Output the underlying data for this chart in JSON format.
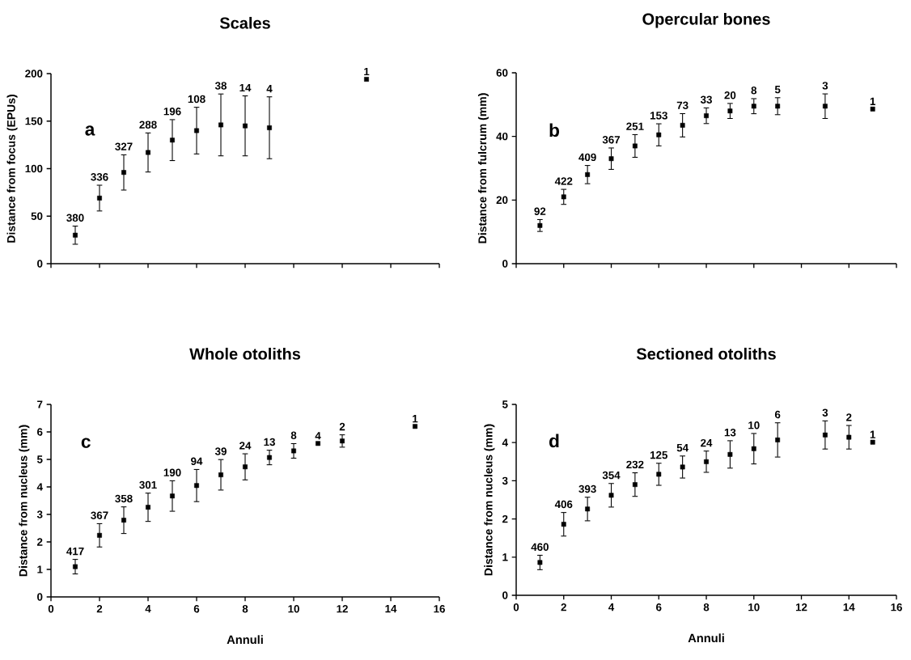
{
  "chart_data": [
    {
      "type": "scatter",
      "title": "Scales",
      "ylabel": "Distance from focus  (EPUs)",
      "x": [
        1,
        2,
        3,
        4,
        5,
        6,
        7,
        8,
        9,
        13
      ],
      "xlim": [
        0,
        16
      ],
      "xticks": [
        0,
        2,
        4,
        6,
        8,
        10,
        12,
        14,
        16
      ],
      "ylim": [
        0,
        200
      ],
      "yticks": [
        0,
        50,
        100,
        150,
        200
      ],
      "tick_labels": "y",
      "marker": "square",
      "series": [
        {
          "color": "#000000",
          "values": [
            30,
            69,
            96,
            117,
            130,
            140,
            146,
            145,
            143,
            194
          ],
          "errors": [
            10,
            14,
            19,
            21,
            22,
            25,
            33,
            32,
            33,
            null
          ]
        }
      ],
      "annotations": [
        "a",
        {
          "text": "380",
          "x": 1,
          "y": 30
        },
        {
          "text": "336",
          "x": 2,
          "y": 69
        },
        {
          "text": "327",
          "x": 3,
          "y": 96
        },
        {
          "text": "288",
          "x": 4,
          "y": 117
        },
        {
          "text": "196",
          "x": 5,
          "y": 130
        },
        {
          "text": "108",
          "x": 6,
          "y": 140
        },
        {
          "text": "38",
          "x": 7,
          "y": 179
        },
        {
          "text": "14",
          "x": 8,
          "y": 177
        },
        {
          "text": "4",
          "x": 9,
          "y": 176
        },
        {
          "text": "1",
          "x": 13,
          "y": 194
        }
      ]
    },
    {
      "type": "scatter",
      "title": "Opercular bones",
      "ylabel": "Distance from fulcrum  (mm)",
      "x": [
        1,
        2,
        3,
        4,
        5,
        6,
        7,
        8,
        9,
        10,
        11,
        13,
        15
      ],
      "xlim": [
        0,
        16
      ],
      "xticks": [
        0,
        2,
        4,
        6,
        8,
        10,
        12,
        14,
        16
      ],
      "ylim": [
        0,
        60
      ],
      "yticks": [
        0,
        20,
        40,
        60
      ],
      "tick_labels": "y",
      "marker": "square",
      "series": [
        {
          "color": "#000000",
          "values": [
            12,
            21,
            28,
            33,
            37,
            40.5,
            43.5,
            46.5,
            48,
            49.5,
            49.5,
            49.5,
            48.6
          ],
          "errors": [
            2,
            2.5,
            3,
            3.5,
            3.7,
            3.6,
            3.8,
            2.6,
            2.5,
            2.5,
            2.8,
            4,
            null
          ]
        }
      ],
      "annotations": [
        "b",
        {
          "text": "92",
          "x": 1,
          "y": 12
        },
        {
          "text": "422",
          "x": 2,
          "y": 21
        },
        {
          "text": "409",
          "x": 3,
          "y": 28
        },
        {
          "text": "367",
          "x": 4,
          "y": 33
        },
        {
          "text": "251",
          "x": 5,
          "y": 37
        },
        {
          "text": "153",
          "x": 6,
          "y": 40.5
        },
        {
          "text": "73",
          "x": 7,
          "y": 43.5
        },
        {
          "text": "33",
          "x": 8,
          "y": 46.5
        },
        {
          "text": "20",
          "x": 9,
          "y": 48
        },
        {
          "text": "8",
          "x": 10,
          "y": 49.5
        },
        {
          "text": "5",
          "x": 11,
          "y": 49.5
        },
        {
          "text": "3",
          "x": 13,
          "y": 49.5
        },
        {
          "text": "1",
          "x": 15,
          "y": 48.6
        }
      ]
    },
    {
      "type": "scatter",
      "title": "Whole otoliths",
      "xlabel": "Annuli",
      "ylabel": "Distance from nucleus  (mm)",
      "x": [
        1,
        2,
        3,
        4,
        5,
        6,
        7,
        8,
        9,
        10,
        11,
        12,
        15
      ],
      "xlim": [
        0,
        16
      ],
      "xticks": [
        0,
        2,
        4,
        6,
        8,
        10,
        12,
        14,
        16
      ],
      "ylim": [
        0,
        7
      ],
      "yticks": [
        0,
        1,
        2,
        3,
        4,
        5,
        6,
        7
      ],
      "marker": "square",
      "series": [
        {
          "color": "#000000",
          "values": [
            1.1,
            2.24,
            2.79,
            3.26,
            3.67,
            4.05,
            4.44,
            4.73,
            5.07,
            5.31,
            5.58,
            5.67,
            6.2
          ],
          "errors": [
            0.28,
            0.44,
            0.5,
            0.53,
            0.57,
            0.6,
            0.57,
            0.49,
            0.28,
            0.28,
            null,
            0.24,
            null
          ]
        }
      ],
      "annotations": [
        "c",
        {
          "text": "417",
          "x": 1,
          "y": 1.1
        },
        {
          "text": "367",
          "x": 2,
          "y": 2.24
        },
        {
          "text": "358",
          "x": 3,
          "y": 2.79
        },
        {
          "text": "301",
          "x": 4,
          "y": 3.26
        },
        {
          "text": "190",
          "x": 5,
          "y": 3.67
        },
        {
          "text": "94",
          "x": 6,
          "y": 4.05
        },
        {
          "text": "39",
          "x": 7,
          "y": 4.44
        },
        {
          "text": "24",
          "x": 8,
          "y": 4.73
        },
        {
          "text": "13",
          "x": 9,
          "y": 5.07
        },
        {
          "text": "8",
          "x": 10,
          "y": 5.31
        },
        {
          "text": "4",
          "x": 11,
          "y": 5.58
        },
        {
          "text": "2",
          "x": 12,
          "y": 5.67
        },
        {
          "text": "1",
          "x": 15,
          "y": 6.2
        }
      ]
    },
    {
      "type": "scatter",
      "title": "Sectioned otoliths",
      "xlabel": "Annuli",
      "ylabel": "Distance from nucleus (mm)",
      "x": [
        1,
        2,
        3,
        4,
        5,
        6,
        7,
        8,
        9,
        10,
        11,
        13,
        14,
        15
      ],
      "xlim": [
        0,
        16
      ],
      "xticks": [
        0,
        2,
        4,
        6,
        8,
        10,
        12,
        14,
        16
      ],
      "ylim": [
        0,
        5
      ],
      "yticks": [
        0,
        1,
        2,
        3,
        4,
        5
      ],
      "marker": "square",
      "series": [
        {
          "color": "#000000",
          "values": [
            0.86,
            1.86,
            2.26,
            2.62,
            2.9,
            3.17,
            3.36,
            3.5,
            3.69,
            3.84,
            4.07,
            4.2,
            4.14,
            4.01
          ],
          "errors": [
            0.2,
            0.32,
            0.32,
            0.32,
            0.32,
            0.3,
            0.3,
            0.29,
            0.37,
            0.41,
            0.46,
            0.38,
            0.32,
            null
          ]
        }
      ],
      "annotations": [
        "d",
        {
          "text": "460",
          "x": 1,
          "y": 0.86
        },
        {
          "text": "406",
          "x": 2,
          "y": 1.86
        },
        {
          "text": "393",
          "x": 3,
          "y": 2.26
        },
        {
          "text": "354",
          "x": 4,
          "y": 2.62
        },
        {
          "text": "232",
          "x": 5,
          "y": 2.9
        },
        {
          "text": "125",
          "x": 6,
          "y": 3.17
        },
        {
          "text": "54",
          "x": 7,
          "y": 3.36
        },
        {
          "text": "24",
          "x": 8,
          "y": 3.5
        },
        {
          "text": "13",
          "x": 9,
          "y": 3.69
        },
        {
          "text": "10",
          "x": 10,
          "y": 3.84
        },
        {
          "text": "6",
          "x": 11,
          "y": 4.07
        },
        {
          "text": "3",
          "x": 13,
          "y": 4.2
        },
        {
          "text": "2",
          "x": 14,
          "y": 4.14
        },
        {
          "text": "1",
          "x": 15,
          "y": 4.01
        }
      ]
    }
  ]
}
